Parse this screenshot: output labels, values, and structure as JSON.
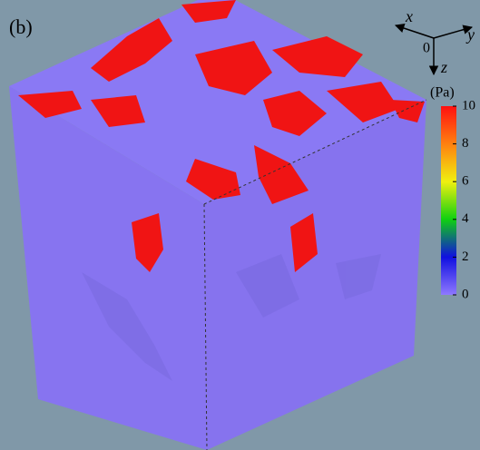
{
  "panel_label": "(b)",
  "axes": {
    "x": "x",
    "y": "y",
    "z": "z",
    "origin": "0"
  },
  "colorbar": {
    "unit": "(Pa)",
    "range": [
      0,
      10
    ],
    "ticks": [
      0,
      2,
      4,
      6,
      8,
      10
    ],
    "colors": [
      "#8f78ff",
      "#1010e0",
      "#10d010",
      "#f0f010",
      "#ff8010",
      "#ff1010"
    ]
  }
}
